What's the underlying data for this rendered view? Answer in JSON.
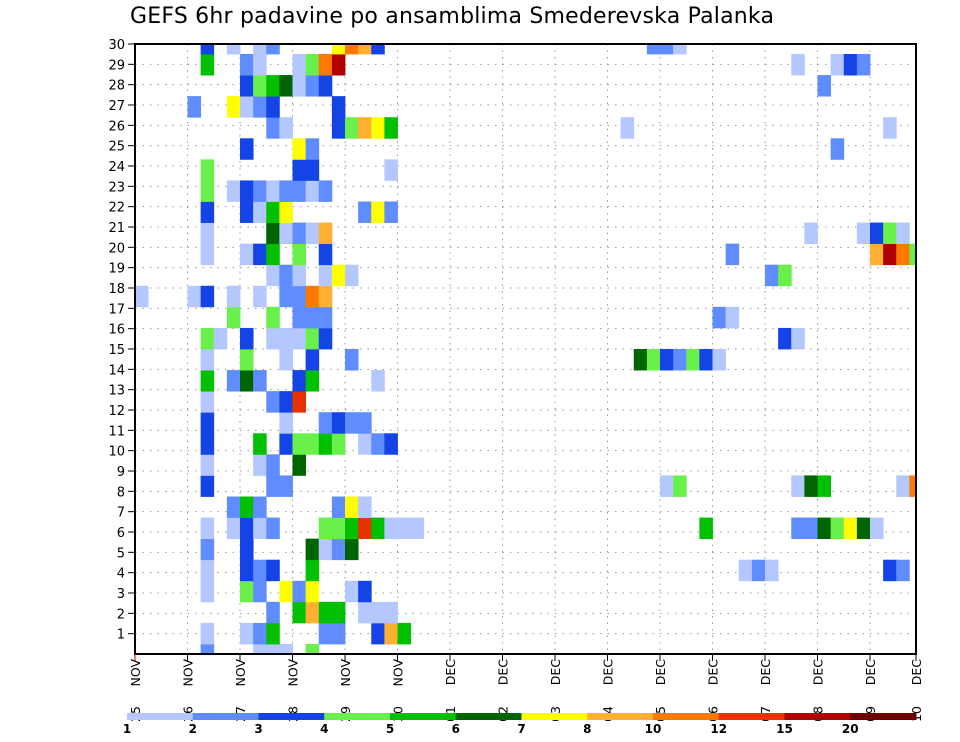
{
  "chart_data": {
    "type": "heatmap",
    "title": "GEFS 6hr padavine po ansamblima Smederevska Palanka",
    "xlabel": "",
    "ylabel": "",
    "y_ticks": [
      "1",
      "2",
      "3",
      "4",
      "5",
      "6",
      "7",
      "8",
      "9",
      "10",
      "11",
      "12",
      "13",
      "14",
      "15",
      "16",
      "17",
      "18",
      "19",
      "20",
      "21",
      "22",
      "23",
      "24",
      "25",
      "26",
      "27",
      "28",
      "29",
      "30"
    ],
    "x_ticks": [
      {
        "day": "25",
        "month": "NOV"
      },
      {
        "day": "26",
        "month": "NOV"
      },
      {
        "day": "27",
        "month": "NOV"
      },
      {
        "day": "28",
        "month": "NOV"
      },
      {
        "day": "29",
        "month": "NOV"
      },
      {
        "day": "30",
        "month": "NOV"
      },
      {
        "day": "01",
        "month": "DEC"
      },
      {
        "day": "02",
        "month": "DEC"
      },
      {
        "day": "03",
        "month": "DEC"
      },
      {
        "day": "04",
        "month": "DEC"
      },
      {
        "day": "05",
        "month": "DEC"
      },
      {
        "day": "06",
        "month": "DEC"
      },
      {
        "day": "07",
        "month": "DEC"
      },
      {
        "day": "08",
        "month": "DEC"
      },
      {
        "day": "09",
        "month": "DEC"
      },
      {
        "day": "10",
        "month": "DEC"
      }
    ],
    "x_step": "6hr",
    "grid": true,
    "colorbar": {
      "levels": [
        "1",
        "2",
        "3",
        "4",
        "5",
        "6",
        "7",
        "8",
        "10",
        "12",
        "15",
        "20"
      ],
      "colors": [
        "#b4c8ff",
        "#5f8cff",
        "#1444e6",
        "#6af04a",
        "#00c000",
        "#006400",
        "#ffff00",
        "#ffb030",
        "#ff7800",
        "#e83200",
        "#b00000",
        "#6e0000"
      ]
    },
    "cells_note": "member -> [[6h-step index from 25 NOV 00z, color level index], ...]",
    "cells": {
      "30": [
        [
          5,
          2
        ],
        [
          7,
          0
        ],
        [
          9,
          0
        ],
        [
          10,
          1
        ],
        [
          15,
          6
        ],
        [
          16,
          8
        ],
        [
          17,
          7
        ],
        [
          18,
          2
        ],
        [
          39,
          1
        ],
        [
          40,
          1
        ],
        [
          41,
          0
        ]
      ],
      "29": [
        [
          5,
          4
        ],
        [
          8,
          1
        ],
        [
          9,
          0
        ],
        [
          12,
          0
        ],
        [
          13,
          3
        ],
        [
          14,
          8
        ],
        [
          15,
          10
        ],
        [
          50,
          0
        ],
        [
          53,
          0
        ],
        [
          54,
          2
        ],
        [
          55,
          1
        ]
      ],
      "28": [
        [
          8,
          2
        ],
        [
          9,
          3
        ],
        [
          10,
          4
        ],
        [
          11,
          5
        ],
        [
          12,
          0
        ],
        [
          13,
          1
        ],
        [
          14,
          2
        ],
        [
          52,
          1
        ]
      ],
      "27": [
        [
          4,
          1
        ],
        [
          7,
          6
        ],
        [
          8,
          0
        ],
        [
          9,
          1
        ],
        [
          10,
          2
        ],
        [
          15,
          2
        ]
      ],
      "26": [
        [
          10,
          1
        ],
        [
          11,
          0
        ],
        [
          15,
          2
        ],
        [
          16,
          3
        ],
        [
          17,
          7
        ],
        [
          18,
          6
        ],
        [
          19,
          4
        ],
        [
          37,
          0
        ],
        [
          57,
          0
        ]
      ],
      "25": [
        [
          8,
          2
        ],
        [
          12,
          6
        ],
        [
          13,
          1
        ],
        [
          53,
          1
        ]
      ],
      "24": [
        [
          5,
          3
        ],
        [
          12,
          2
        ],
        [
          13,
          2
        ],
        [
          19,
          0
        ]
      ],
      "23": [
        [
          5,
          3
        ],
        [
          7,
          0
        ],
        [
          8,
          2
        ],
        [
          9,
          1
        ],
        [
          10,
          0
        ],
        [
          11,
          1
        ],
        [
          12,
          1
        ],
        [
          13,
          0
        ],
        [
          14,
          1
        ]
      ],
      "22": [
        [
          5,
          2
        ],
        [
          8,
          2
        ],
        [
          9,
          0
        ],
        [
          10,
          4
        ],
        [
          11,
          6
        ],
        [
          17,
          1
        ],
        [
          18,
          6
        ],
        [
          19,
          1
        ]
      ],
      "21": [
        [
          5,
          0
        ],
        [
          10,
          5
        ],
        [
          11,
          0
        ],
        [
          12,
          1
        ],
        [
          13,
          0
        ],
        [
          14,
          7
        ],
        [
          51,
          0
        ],
        [
          55,
          0
        ],
        [
          56,
          2
        ],
        [
          57,
          3
        ],
        [
          58,
          0
        ]
      ],
      "20": [
        [
          5,
          0
        ],
        [
          8,
          0
        ],
        [
          9,
          2
        ],
        [
          10,
          4
        ],
        [
          12,
          3
        ],
        [
          14,
          2
        ],
        [
          45,
          1
        ],
        [
          56,
          7
        ],
        [
          57,
          10
        ],
        [
          58,
          8
        ],
        [
          59,
          3
        ]
      ],
      "19": [
        [
          10,
          0
        ],
        [
          11,
          1
        ],
        [
          12,
          0
        ],
        [
          14,
          0
        ],
        [
          15,
          6
        ],
        [
          16,
          0
        ],
        [
          48,
          1
        ],
        [
          49,
          3
        ]
      ],
      "18": [
        [
          0,
          0
        ],
        [
          4,
          0
        ],
        [
          5,
          2
        ],
        [
          7,
          0
        ],
        [
          9,
          0
        ],
        [
          11,
          1
        ],
        [
          12,
          1
        ],
        [
          13,
          8
        ],
        [
          14,
          7
        ]
      ],
      "17": [
        [
          7,
          3
        ],
        [
          10,
          3
        ],
        [
          12,
          1
        ],
        [
          13,
          1
        ],
        [
          14,
          1
        ],
        [
          44,
          1
        ],
        [
          45,
          0
        ]
      ],
      "16": [
        [
          5,
          3
        ],
        [
          6,
          0
        ],
        [
          8,
          2
        ],
        [
          10,
          0
        ],
        [
          11,
          0
        ],
        [
          12,
          0
        ],
        [
          13,
          3
        ],
        [
          14,
          2
        ],
        [
          49,
          2
        ],
        [
          50,
          0
        ]
      ],
      "15": [
        [
          5,
          0
        ],
        [
          8,
          3
        ],
        [
          11,
          0
        ],
        [
          13,
          2
        ],
        [
          16,
          1
        ],
        [
          38,
          5
        ],
        [
          39,
          3
        ],
        [
          40,
          2
        ],
        [
          41,
          1
        ],
        [
          42,
          3
        ],
        [
          43,
          2
        ],
        [
          44,
          0
        ]
      ],
      "14": [
        [
          5,
          4
        ],
        [
          7,
          1
        ],
        [
          8,
          5
        ],
        [
          9,
          1
        ],
        [
          12,
          2
        ],
        [
          13,
          4
        ],
        [
          18,
          0
        ]
      ],
      "13": [
        [
          5,
          0
        ],
        [
          10,
          1
        ],
        [
          11,
          2
        ],
        [
          12,
          9
        ]
      ],
      "12": [
        [
          5,
          2
        ],
        [
          11,
          0
        ],
        [
          14,
          1
        ],
        [
          15,
          2
        ],
        [
          16,
          1
        ],
        [
          17,
          1
        ]
      ],
      "11": [
        [
          5,
          2
        ],
        [
          9,
          4
        ],
        [
          11,
          2
        ],
        [
          12,
          3
        ],
        [
          13,
          3
        ],
        [
          14,
          4
        ],
        [
          15,
          3
        ],
        [
          17,
          0
        ],
        [
          18,
          1
        ],
        [
          19,
          2
        ]
      ],
      "10": [
        [
          5,
          0
        ],
        [
          9,
          0
        ],
        [
          10,
          1
        ],
        [
          12,
          5
        ]
      ],
      "9": [
        [
          5,
          2
        ],
        [
          10,
          1
        ],
        [
          11,
          1
        ],
        [
          40,
          0
        ],
        [
          41,
          3
        ],
        [
          50,
          0
        ],
        [
          51,
          5
        ],
        [
          52,
          4
        ],
        [
          58,
          0
        ],
        [
          59,
          8
        ]
      ],
      "8": [
        [
          7,
          1
        ],
        [
          8,
          4
        ],
        [
          9,
          1
        ],
        [
          15,
          1
        ],
        [
          16,
          6
        ],
        [
          17,
          0
        ]
      ],
      "7": [
        [
          5,
          0
        ],
        [
          7,
          0
        ],
        [
          8,
          2
        ],
        [
          9,
          0
        ],
        [
          10,
          1
        ],
        [
          14,
          3
        ],
        [
          15,
          3
        ],
        [
          16,
          4
        ],
        [
          17,
          9
        ],
        [
          18,
          4
        ],
        [
          19,
          0
        ],
        [
          20,
          0
        ],
        [
          21,
          0
        ],
        [
          43,
          4
        ],
        [
          50,
          1
        ],
        [
          51,
          1
        ],
        [
          52,
          5
        ],
        [
          53,
          3
        ],
        [
          54,
          6
        ],
        [
          55,
          5
        ],
        [
          56,
          0
        ]
      ],
      "6": [
        [
          5,
          1
        ],
        [
          8,
          2
        ],
        [
          13,
          5
        ],
        [
          14,
          0
        ],
        [
          15,
          1
        ],
        [
          16,
          5
        ]
      ],
      "5": [
        [
          5,
          0
        ],
        [
          8,
          2
        ],
        [
          9,
          1
        ],
        [
          10,
          2
        ],
        [
          13,
          4
        ],
        [
          46,
          0
        ],
        [
          47,
          1
        ],
        [
          48,
          0
        ],
        [
          57,
          2
        ],
        [
          58,
          1
        ]
      ],
      "4": [
        [
          5,
          0
        ],
        [
          8,
          3
        ],
        [
          9,
          1
        ],
        [
          11,
          6
        ],
        [
          12,
          1
        ],
        [
          13,
          6
        ],
        [
          16,
          0
        ],
        [
          17,
          2
        ]
      ],
      "3": [
        [
          10,
          1
        ],
        [
          12,
          4
        ],
        [
          13,
          7
        ],
        [
          14,
          4
        ],
        [
          15,
          4
        ],
        [
          17,
          0
        ],
        [
          18,
          0
        ],
        [
          19,
          0
        ]
      ],
      "2": [
        [
          5,
          0
        ],
        [
          8,
          0
        ],
        [
          9,
          1
        ],
        [
          10,
          4
        ],
        [
          14,
          1
        ],
        [
          15,
          1
        ],
        [
          18,
          2
        ],
        [
          19,
          7
        ],
        [
          20,
          4
        ]
      ],
      "1": [
        [
          5,
          1
        ],
        [
          9,
          0
        ],
        [
          10,
          0
        ],
        [
          11,
          0
        ],
        [
          13,
          3
        ]
      ]
    }
  }
}
